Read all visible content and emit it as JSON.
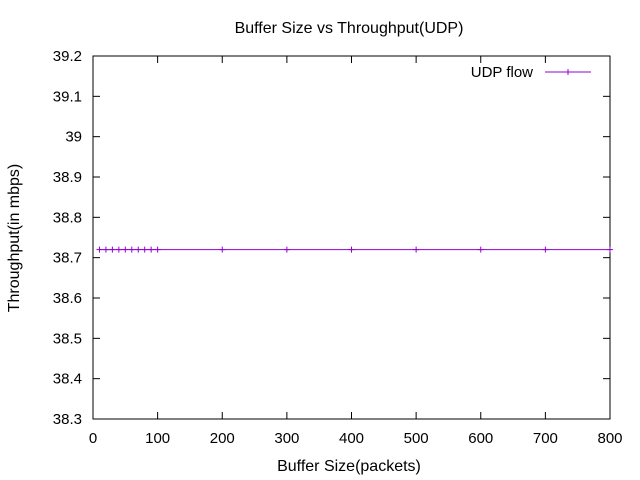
{
  "chart_data": {
    "type": "line",
    "title": "Buffer Size vs Throughput(UDP)",
    "xlabel": "Buffer Size(packets)",
    "ylabel": "Throughput(in mbps)",
    "xlim": [
      0,
      800
    ],
    "ylim": [
      38.3,
      39.2
    ],
    "xticks": [
      0,
      100,
      200,
      300,
      400,
      500,
      600,
      700,
      800
    ],
    "yticks": [
      38.3,
      38.4,
      38.5,
      38.6,
      38.7,
      38.8,
      38.9,
      39,
      39.1,
      39.2
    ],
    "grid": false,
    "legend_position": "top-right",
    "series": [
      {
        "name": "UDP flow",
        "color": "#9400d3",
        "x": [
          10,
          20,
          30,
          40,
          50,
          60,
          70,
          80,
          90,
          100,
          200,
          300,
          400,
          500,
          600,
          700,
          800
        ],
        "y": [
          38.72,
          38.72,
          38.72,
          38.72,
          38.72,
          38.72,
          38.72,
          38.72,
          38.72,
          38.72,
          38.72,
          38.72,
          38.72,
          38.72,
          38.72,
          38.72,
          38.72
        ]
      }
    ]
  }
}
